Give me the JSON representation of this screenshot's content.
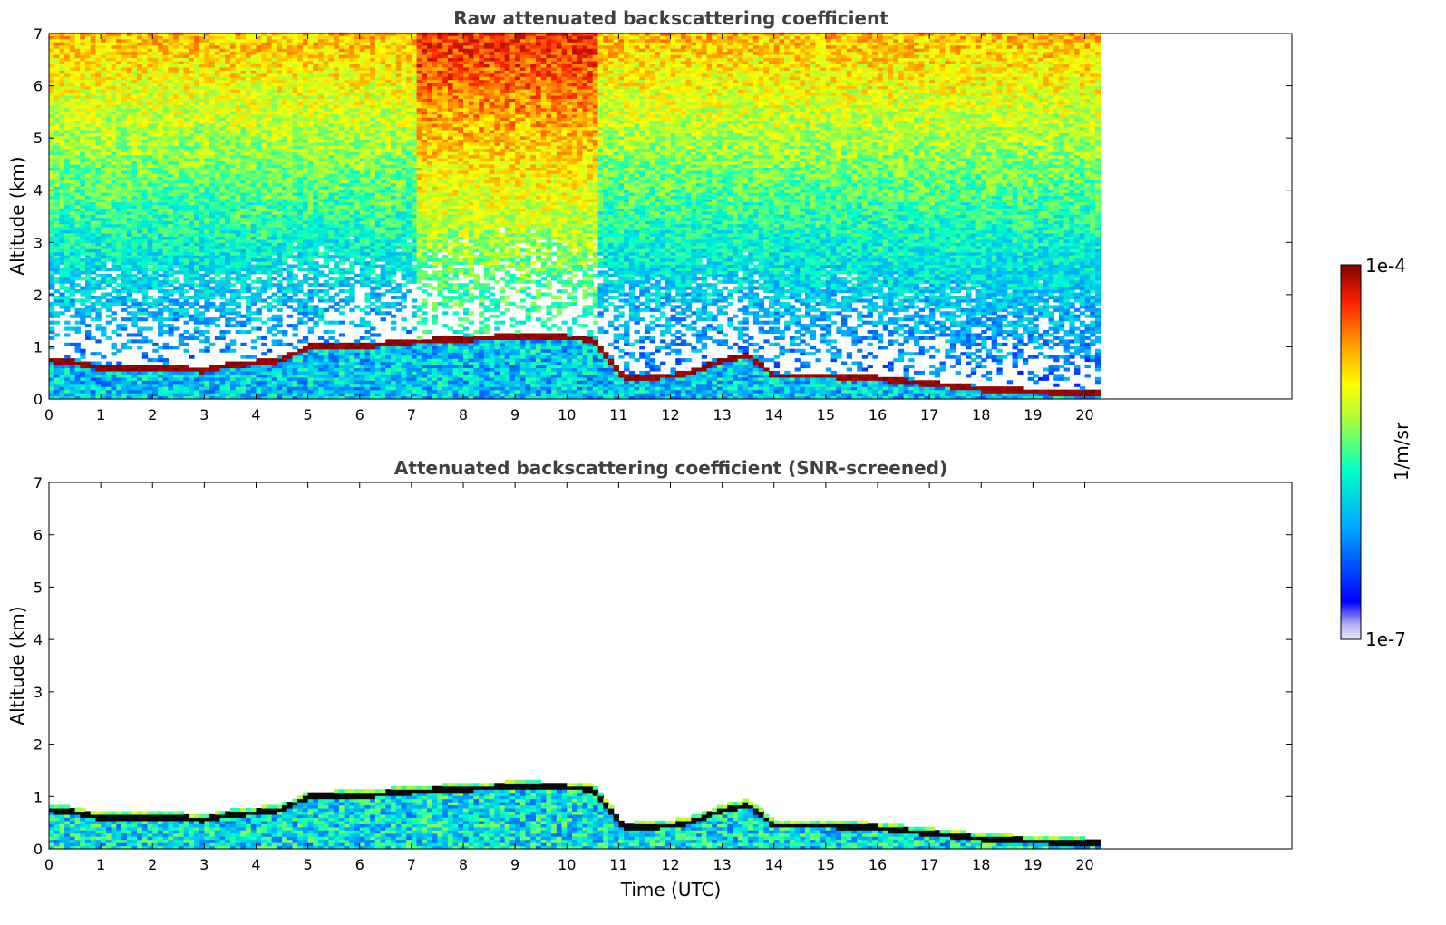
{
  "chart_data": [
    {
      "type": "heatmap",
      "title": "Raw attenuated backscattering coefficient",
      "xlabel": "",
      "ylabel": "Altitude (km)",
      "xlim": [
        0,
        24
      ],
      "ylim": [
        0,
        7
      ],
      "xticks": [
        "0",
        "1",
        "2",
        "3",
        "4",
        "5",
        "6",
        "7",
        "8",
        "9",
        "10",
        "11",
        "12",
        "13",
        "14",
        "15",
        "16",
        "17",
        "18",
        "19",
        "20"
      ],
      "yticks": [
        "0",
        "1",
        "2",
        "3",
        "4",
        "5",
        "6",
        "7"
      ],
      "data_extent_hours": [
        0,
        20.3
      ],
      "screened": false,
      "cloud_layer": {
        "time_h": [
          0,
          0.5,
          1,
          1.5,
          2,
          2.5,
          3,
          3.5,
          4,
          4.5,
          5,
          6,
          7,
          8,
          9,
          10,
          10.5,
          11.1,
          12,
          12.5,
          13,
          13.5,
          14,
          15,
          16,
          17,
          18,
          19,
          20.3
        ],
        "height_km": [
          0.75,
          0.7,
          0.6,
          0.62,
          0.6,
          0.6,
          0.55,
          0.65,
          0.7,
          0.75,
          1.0,
          1.02,
          1.1,
          1.15,
          1.2,
          1.18,
          1.15,
          0.4,
          0.45,
          0.55,
          0.75,
          0.85,
          0.45,
          0.45,
          0.4,
          0.3,
          0.2,
          0.15,
          0.1
        ]
      }
    },
    {
      "type": "heatmap",
      "title": "Attenuated backscattering coefficient (SNR-screened)",
      "xlabel": "Time (UTC)",
      "ylabel": "Altitude (km)",
      "xlim": [
        0,
        24
      ],
      "ylim": [
        0,
        7
      ],
      "xticks": [
        "0",
        "1",
        "2",
        "3",
        "4",
        "5",
        "6",
        "7",
        "8",
        "9",
        "10",
        "11",
        "12",
        "13",
        "14",
        "15",
        "16",
        "17",
        "18",
        "19",
        "20"
      ],
      "yticks": [
        "0",
        "1",
        "2",
        "3",
        "4",
        "5",
        "6",
        "7"
      ],
      "data_extent_hours": [
        0,
        20.3
      ],
      "screened": true
    }
  ],
  "colorbar": {
    "label": "1/m/sr",
    "max_label": "1e-4",
    "min_label": "1e-7",
    "range": [
      1e-07,
      0.0001
    ],
    "scale": "log",
    "colormap": [
      "#e8e8f8",
      "#0000ff",
      "#00a8ff",
      "#00ffc8",
      "#a0ff40",
      "#ffff00",
      "#ff9000",
      "#ff2000",
      "#800000"
    ]
  }
}
